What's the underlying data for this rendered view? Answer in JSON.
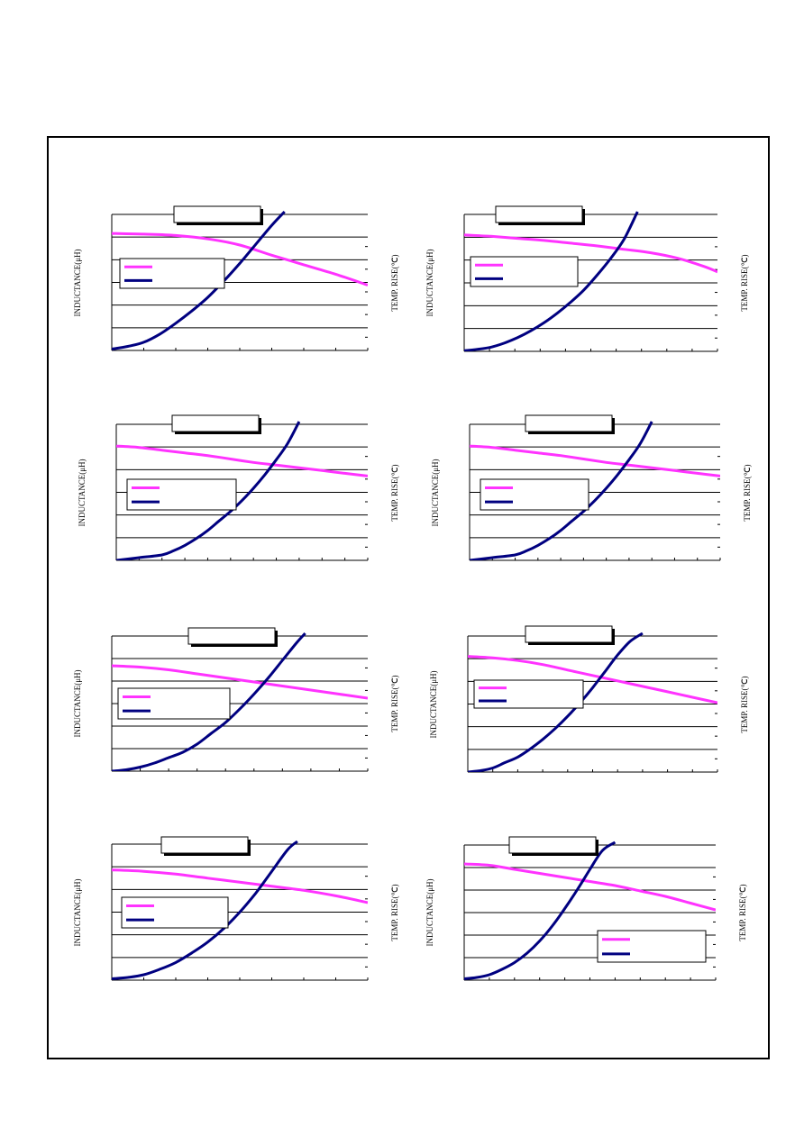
{
  "page": {
    "colors": {
      "inductance": "#ff33ff",
      "temp_rise": "#000080",
      "grid": "#000000"
    }
  },
  "chart_data": [
    {
      "type": "line",
      "title": "",
      "ylabel": "INDUCTANCE(μH)",
      "y2label": "TEMP. RISE(℃)",
      "grid": true,
      "legend": "upper-left",
      "series": [
        {
          "axis": "inductance",
          "x": [
            0,
            1,
            2,
            3,
            4,
            5,
            6,
            7,
            8
          ],
          "values": [
            0.86,
            0.855,
            0.845,
            0.82,
            0.775,
            0.7,
            0.63,
            0.56,
            0.48
          ]
        },
        {
          "axis": "temp_rise",
          "x": [
            0,
            0.5,
            1,
            1.5,
            2,
            2.5,
            3,
            3.5,
            4,
            4.5,
            5,
            5.4
          ],
          "values": [
            0.01,
            0.03,
            0.06,
            0.12,
            0.2,
            0.29,
            0.39,
            0.51,
            0.64,
            0.78,
            0.92,
            1.02
          ]
        }
      ]
    },
    {
      "type": "line",
      "title": "",
      "ylabel": "INDUCTANCE(μH)",
      "y2label": "TEMP. RISE(℃)",
      "grid": true,
      "legend": "upper-left",
      "series": [
        {
          "axis": "inductance",
          "x": [
            0,
            1,
            2,
            3,
            4,
            5,
            6,
            7,
            8,
            9,
            9.5
          ],
          "values": [
            0.85,
            0.84,
            0.825,
            0.81,
            0.79,
            0.77,
            0.745,
            0.72,
            0.68,
            0.62,
            0.58
          ]
        },
        {
          "axis": "temp_rise",
          "x": [
            0,
            0.5,
            1,
            1.5,
            2,
            2.5,
            3,
            3.5,
            4,
            4.5,
            5,
            5.5,
            6,
            6.5
          ],
          "values": [
            0.005,
            0.015,
            0.03,
            0.06,
            0.1,
            0.15,
            0.21,
            0.28,
            0.36,
            0.45,
            0.56,
            0.68,
            0.82,
            1.02
          ]
        }
      ]
    },
    {
      "type": "line",
      "title": "",
      "ylabel": "INDUCTANCE(μH)",
      "y2label": "TEMP. RISE(℃)",
      "grid": true,
      "legend": "upper-left",
      "series": [
        {
          "axis": "inductance",
          "x": [
            0,
            1,
            2,
            3,
            4,
            5,
            6,
            7,
            8,
            9,
            10,
            11
          ],
          "values": [
            0.84,
            0.83,
            0.81,
            0.79,
            0.77,
            0.745,
            0.72,
            0.7,
            0.68,
            0.66,
            0.64,
            0.62
          ]
        },
        {
          "axis": "temp_rise",
          "x": [
            0,
            1,
            2,
            2.5,
            3,
            3.5,
            4,
            4.5,
            5,
            5.5,
            6,
            6.5,
            7,
            7.5,
            8
          ],
          "values": [
            0,
            0.02,
            0.04,
            0.07,
            0.11,
            0.16,
            0.22,
            0.29,
            0.36,
            0.44,
            0.53,
            0.63,
            0.74,
            0.86,
            1.02
          ]
        }
      ]
    },
    {
      "type": "line",
      "title": "",
      "ylabel": "INDUCTANCE(μH)",
      "y2label": "TEMP. RISE(℃)",
      "grid": true,
      "legend": "upper-left",
      "series": [
        {
          "axis": "inductance",
          "x": [
            0,
            1,
            2,
            3,
            4,
            5,
            6,
            7,
            8,
            9,
            10,
            11
          ],
          "values": [
            0.84,
            0.83,
            0.81,
            0.79,
            0.77,
            0.745,
            0.72,
            0.7,
            0.68,
            0.66,
            0.64,
            0.62
          ]
        },
        {
          "axis": "temp_rise",
          "x": [
            0,
            1,
            2,
            2.5,
            3,
            3.5,
            4,
            4.5,
            5,
            5.5,
            6,
            6.5,
            7,
            7.5,
            8
          ],
          "values": [
            0,
            0.02,
            0.04,
            0.07,
            0.11,
            0.16,
            0.22,
            0.29,
            0.36,
            0.44,
            0.53,
            0.63,
            0.74,
            0.86,
            1.02
          ]
        }
      ]
    },
    {
      "type": "line",
      "title": "",
      "ylabel": "INDUCTANCE(μH)",
      "y2label": "TEMP. RISE(℃)",
      "grid": true,
      "legend": "middle-left",
      "series": [
        {
          "axis": "inductance",
          "x": [
            0,
            1,
            2,
            3,
            4,
            5,
            6,
            7,
            8,
            9
          ],
          "values": [
            0.78,
            0.77,
            0.75,
            0.72,
            0.69,
            0.66,
            0.63,
            0.6,
            0.57,
            0.54
          ]
        },
        {
          "axis": "temp_rise",
          "x": [
            0,
            0.5,
            1,
            1.5,
            2,
            2.5,
            3,
            3.5,
            4,
            4.5,
            5,
            5.5,
            6,
            6.5,
            6.8
          ],
          "values": [
            0,
            0.01,
            0.03,
            0.06,
            0.1,
            0.14,
            0.2,
            0.28,
            0.36,
            0.46,
            0.57,
            0.69,
            0.82,
            0.95,
            1.02
          ]
        }
      ]
    },
    {
      "type": "line",
      "title": "",
      "ylabel": "INDUCTANCE(μH)",
      "y2label": "TEMP. RISE(℃)",
      "grid": true,
      "legend": "middle-left",
      "series": [
        {
          "axis": "inductance",
          "x": [
            0,
            1,
            2,
            3,
            4,
            5,
            6,
            7,
            8,
            9,
            10
          ],
          "values": [
            0.85,
            0.84,
            0.82,
            0.79,
            0.75,
            0.71,
            0.67,
            0.63,
            0.59,
            0.55,
            0.51
          ]
        },
        {
          "axis": "temp_rise",
          "x": [
            0,
            0.5,
            1,
            1.5,
            2,
            2.5,
            3,
            3.5,
            4,
            4.5,
            5,
            5.5,
            6,
            6.5,
            7
          ],
          "values": [
            0,
            0.01,
            0.03,
            0.07,
            0.11,
            0.17,
            0.24,
            0.32,
            0.41,
            0.51,
            0.62,
            0.74,
            0.86,
            0.96,
            1.02
          ]
        }
      ]
    },
    {
      "type": "line",
      "title": "",
      "ylabel": "INDUCTANCE(μH)",
      "y2label": "TEMP. RISE(℃)",
      "grid": true,
      "legend": "upper-left",
      "series": [
        {
          "axis": "inductance",
          "x": [
            0,
            1,
            2,
            3,
            4,
            5,
            6,
            7,
            8
          ],
          "values": [
            0.81,
            0.8,
            0.78,
            0.75,
            0.72,
            0.69,
            0.66,
            0.62,
            0.57
          ]
        },
        {
          "axis": "temp_rise",
          "x": [
            0,
            0.5,
            1,
            1.5,
            2,
            2.5,
            3,
            3.5,
            4,
            4.5,
            5,
            5.5,
            5.8
          ],
          "values": [
            0.01,
            0.02,
            0.04,
            0.08,
            0.13,
            0.2,
            0.28,
            0.38,
            0.5,
            0.64,
            0.8,
            0.96,
            1.02
          ]
        }
      ]
    },
    {
      "type": "line",
      "title": "",
      "ylabel": "INDUCTANCE(μH)",
      "y2label": "TEMP. RISE(℃)",
      "grid": true,
      "legend": "lower-right",
      "series": [
        {
          "axis": "inductance",
          "x": [
            0,
            1,
            2,
            3,
            4,
            5,
            6,
            7,
            8,
            9,
            10
          ],
          "values": [
            0.86,
            0.85,
            0.82,
            0.79,
            0.76,
            0.73,
            0.7,
            0.66,
            0.62,
            0.57,
            0.52
          ]
        },
        {
          "axis": "temp_rise",
          "x": [
            0,
            0.5,
            1,
            1.5,
            2,
            2.5,
            3,
            3.5,
            4,
            4.5,
            5,
            5.5,
            6
          ],
          "values": [
            0.01,
            0.02,
            0.04,
            0.08,
            0.13,
            0.2,
            0.29,
            0.4,
            0.53,
            0.67,
            0.82,
            0.96,
            1.02
          ]
        }
      ]
    }
  ]
}
